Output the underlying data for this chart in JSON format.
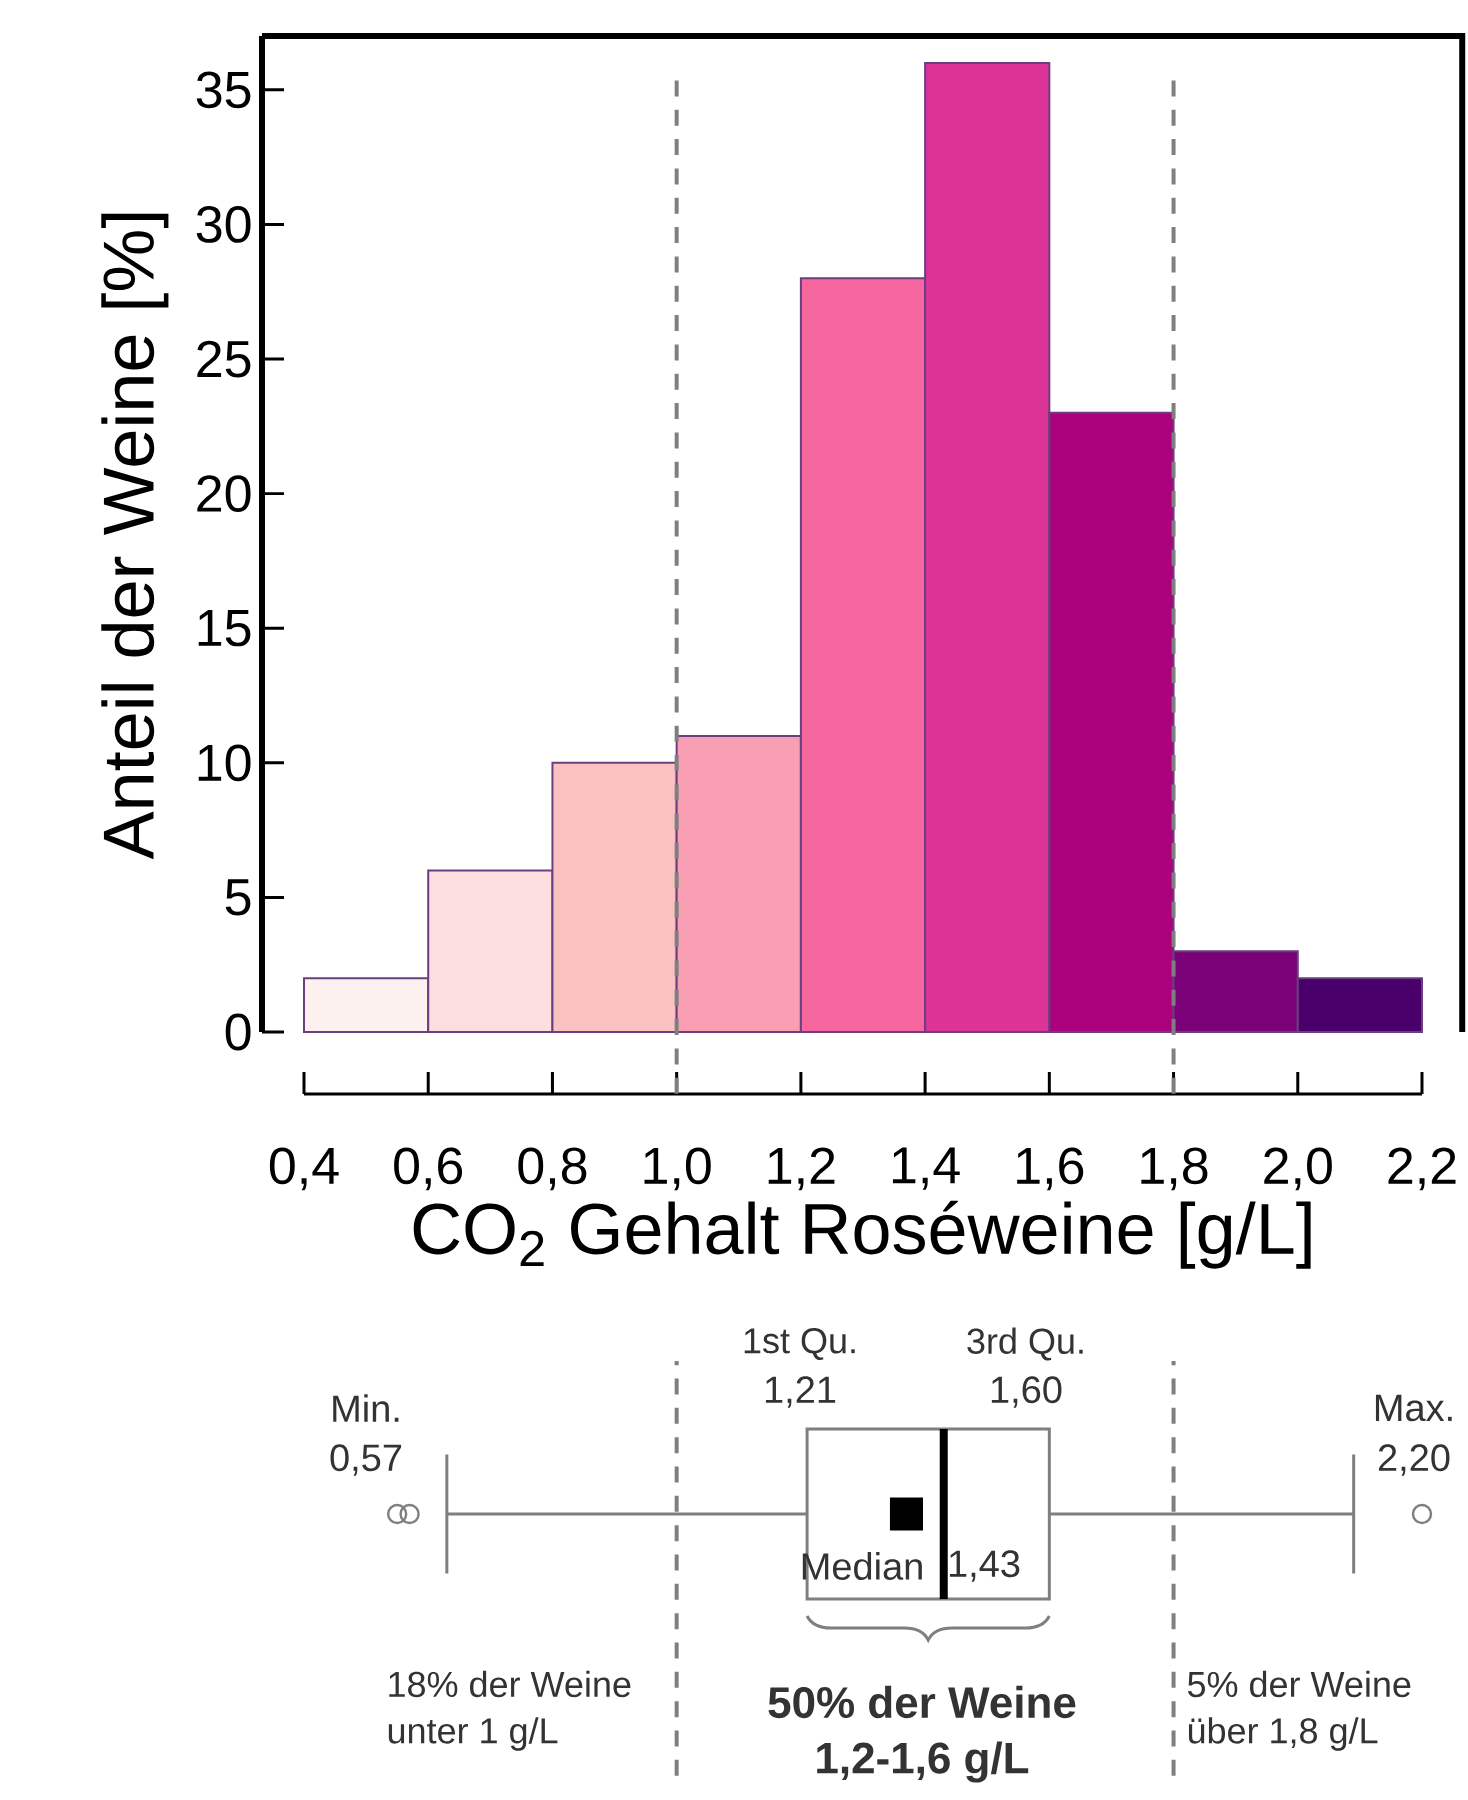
{
  "chart_data": [
    {
      "type": "histogram",
      "xlabel": "CO$_{2}$ Gehalt Roséweine [g/L]",
      "ylabel": "Anteil der Weine [%]",
      "bins": [
        0.4,
        0.6,
        0.8,
        1.0,
        1.2,
        1.4,
        1.6,
        1.8,
        2.0,
        2.2
      ],
      "values": [
        2,
        6,
        10,
        11,
        28,
        36,
        23,
        3,
        2
      ],
      "colors": [
        "#fdf1f0",
        "#fcdde0",
        "#f9c1c0",
        "#f89fb4",
        "#f667a0",
        "#dc3397",
        "#ac017d",
        "#7a0177",
        "#4a006a"
      ],
      "xlim": [
        0.4,
        2.2
      ],
      "ylim": [
        0,
        37
      ],
      "xticks": [
        {
          "value": 0.4,
          "label": "0,4"
        },
        {
          "value": 0.6,
          "label": "0,6"
        },
        {
          "value": 0.8,
          "label": "0,8"
        },
        {
          "value": 1.0,
          "label": "1,0"
        },
        {
          "value": 1.2,
          "label": "1,2"
        },
        {
          "value": 1.4,
          "label": "1,4"
        },
        {
          "value": 1.6,
          "label": "1,6"
        },
        {
          "value": 1.8,
          "label": "1,8"
        },
        {
          "value": 2.0,
          "label": "2,0"
        },
        {
          "value": 2.2,
          "label": "2,2"
        }
      ],
      "yticks": [
        0,
        5,
        10,
        15,
        20,
        25,
        30,
        35
      ],
      "ref_lines": [
        {
          "axis": "x",
          "value": 1.0,
          "color": "#7f7f7f",
          "line_style": "dashed"
        },
        {
          "axis": "x",
          "value": 1.8,
          "color": "#7f7f7f",
          "line_style": "dashed"
        }
      ]
    },
    {
      "type": "box",
      "orientation": "horizontal",
      "categories": [
        null
      ],
      "tick_labels": false,
      "xlim": [
        0.4,
        2.2
      ],
      "boxes": [
        {
          "low": 0.63,
          "q1": 1.21,
          "median": 1.43,
          "q3": 1.6,
          "high": 2.09,
          "mean": 1.37,
          "outliers": [
            0.55,
            0.57,
            2.2
          ]
        }
      ],
      "ref_lines": [
        {
          "axis": "x",
          "value": 1.0,
          "color": "#7f7f7f",
          "line_style": "dashed"
        },
        {
          "axis": "x",
          "value": 1.8,
          "color": "#7f7f7f",
          "line_style": "dashed"
        }
      ],
      "annotations": [
        "Min.",
        "0,57",
        "1st Qu.",
        "1,21",
        "3rd Qu.",
        "1,60",
        "Max.",
        "2,20",
        "Median",
        "1,43",
        "18% der Weine",
        "unter 1 g/L",
        "50% der Weine",
        "1,2-1,6 g/L",
        "5% der Weine",
        "über 1,8 g/L"
      ]
    }
  ]
}
